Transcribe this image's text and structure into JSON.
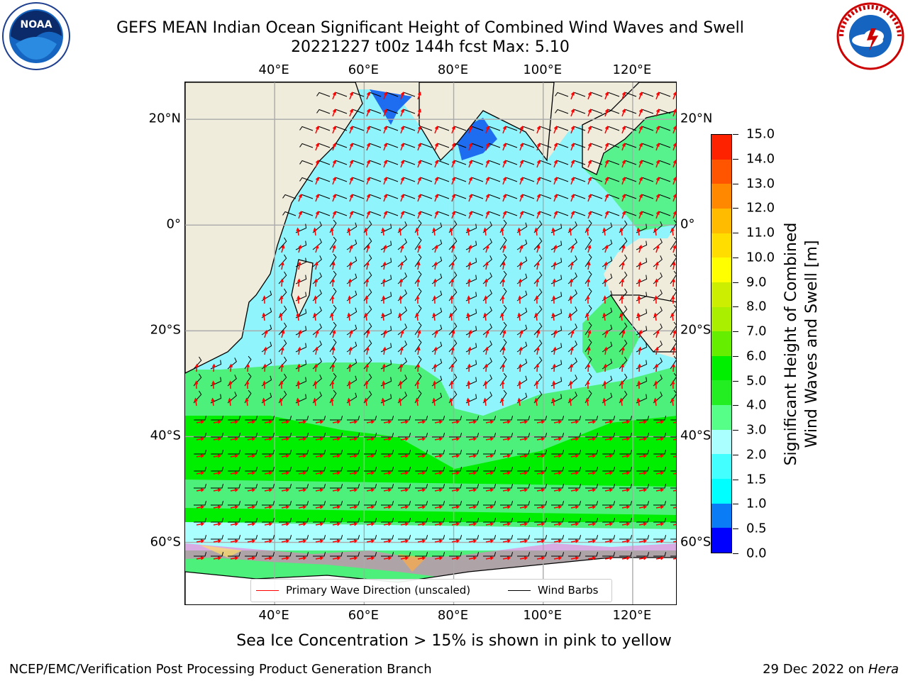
{
  "header": {
    "title_line1": "GEFS MEAN Indian Ocean Significant Height of Combined Wind Waves and Swell",
    "title_line2": "20221227 t00z 144h fcst   Max: 5.10"
  },
  "logos": {
    "noaa": {
      "icon": "noaa-logo",
      "text": "NOAA"
    },
    "nws": {
      "icon": "nws-logo"
    }
  },
  "map": {
    "lon_ticks": [
      "40°E",
      "60°E",
      "80°E",
      "100°E",
      "120°E"
    ],
    "lat_ticks": [
      "20°N",
      "0°",
      "20°S",
      "40°S",
      "60°S"
    ],
    "lon_range": [
      20,
      130
    ],
    "lat_range": [
      -72,
      27
    ],
    "grid": true
  },
  "legend": {
    "placement": "bottom-center",
    "items": [
      {
        "label": "Primary Wave Direction (unscaled)",
        "color": "#ff0000"
      },
      {
        "label": "Wind Barbs",
        "color": "#000000"
      }
    ]
  },
  "colorbar": {
    "title_line1": "Significant Height of Combined",
    "title_line2": "Wind Waves and Swell [m]",
    "levels": [
      "0.0",
      "0.5",
      "1.0",
      "1.5",
      "2.0",
      "3.0",
      "4.0",
      "5.0",
      "6.0",
      "7.0",
      "8.0",
      "9.0",
      "10.0",
      "11.0",
      "12.0",
      "13.0",
      "14.0",
      "15.0"
    ],
    "colors": [
      "#0000ff",
      "#0a7cf5",
      "#00ffff",
      "#44ffff",
      "#aaffff",
      "#55ff88",
      "#22ee22",
      "#00ee00",
      "#66ee00",
      "#aaee00",
      "#ccee00",
      "#ffff00",
      "#ffdd00",
      "#ffbb00",
      "#ff8800",
      "#ff5500",
      "#ff2200"
    ]
  },
  "annotations": {
    "sea_ice_note": "Sea Ice Concentration > 15% is shown in pink to yellow"
  },
  "footer": {
    "left": "NCEP/EMC/Verification Post Processing Product Generation Branch",
    "right_date": "29 Dec 2022 on",
    "right_host": "Hera"
  }
}
